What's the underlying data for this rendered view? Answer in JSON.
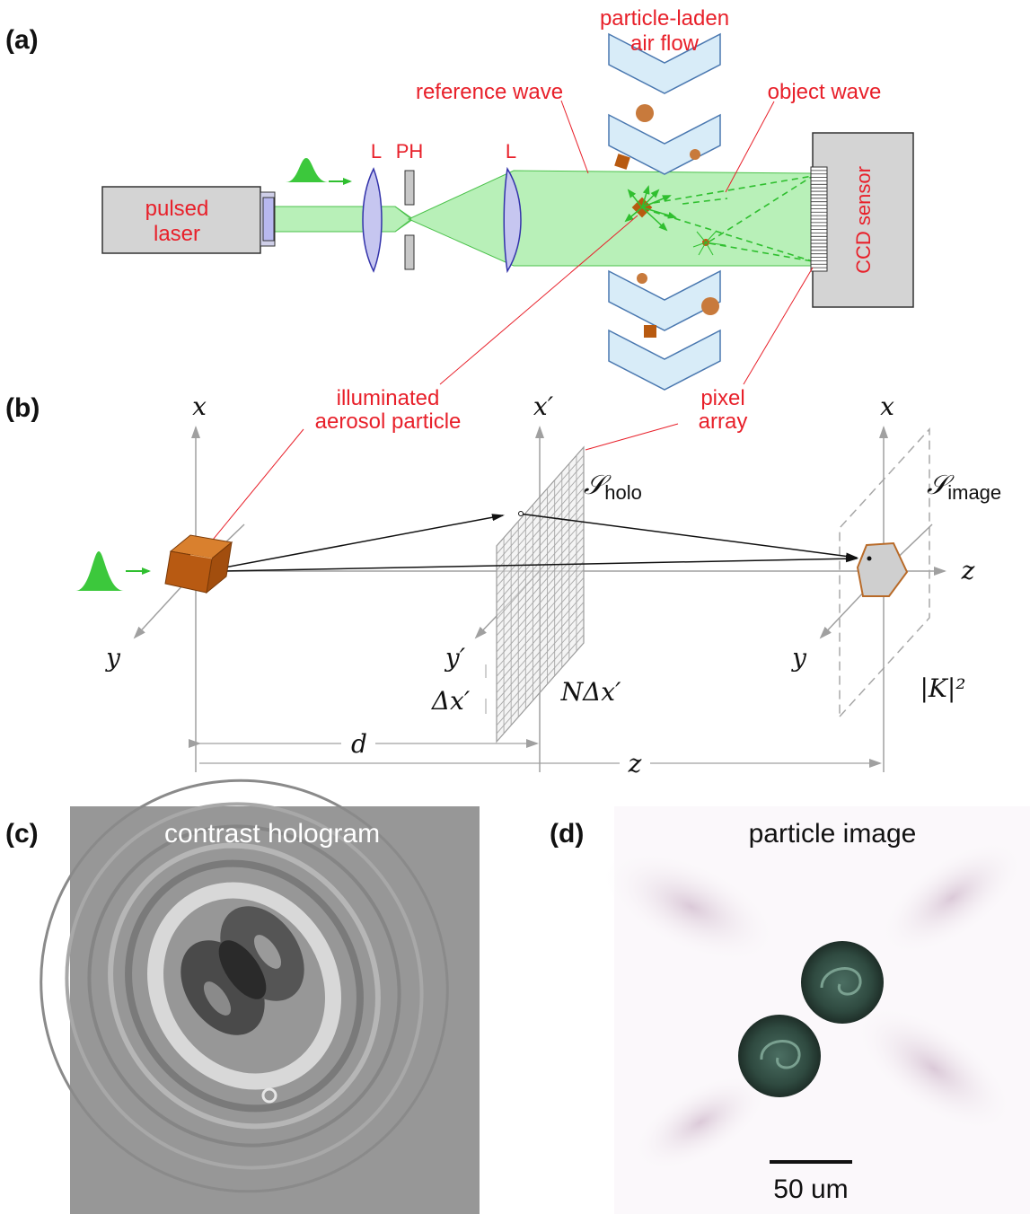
{
  "panels": {
    "a": "(a)",
    "b": "(b)",
    "c": "(c)",
    "d": "(d)"
  },
  "labels_a": {
    "laser_line1": "pulsed",
    "laser_line2": "laser",
    "lens1": "L",
    "pinhole": "PH",
    "lens2": "L",
    "flow_line1": "particle-laden",
    "flow_line2": "air flow",
    "reference_wave": "reference wave",
    "object_wave": "object wave",
    "sensor": "CCD sensor",
    "particle_line1": "illuminated",
    "particle_line2": "aerosol particle",
    "pixel_line1": "pixel",
    "pixel_line2": "array"
  },
  "labels_b": {
    "x_left": "x",
    "y_left": "y",
    "x_holo": "x′",
    "y_holo": "y′",
    "s_holo_main": "𝒮",
    "s_holo_sub": "holo",
    "s_image_main": "𝒮",
    "s_image_sub": "image",
    "x_right": "x",
    "y_right": "y",
    "z_axis": "z",
    "dx": "Δx′",
    "ndx": "NΔx′",
    "kernel": "|K|²",
    "d": "d",
    "z_dist": "z"
  },
  "labels_c": {
    "title": "contrast hologram"
  },
  "labels_d": {
    "title": "particle image",
    "scale": "50 um"
  },
  "colors": {
    "label_red": "#e8202a",
    "beam_green": "#b8f0b8",
    "pulse_green": "#3cc83c",
    "particle_brown": "#b85a10",
    "flow_blue": "#d8ecf8",
    "device_gray": "#d4d4d4",
    "axis_gray": "#a0a0a0"
  }
}
